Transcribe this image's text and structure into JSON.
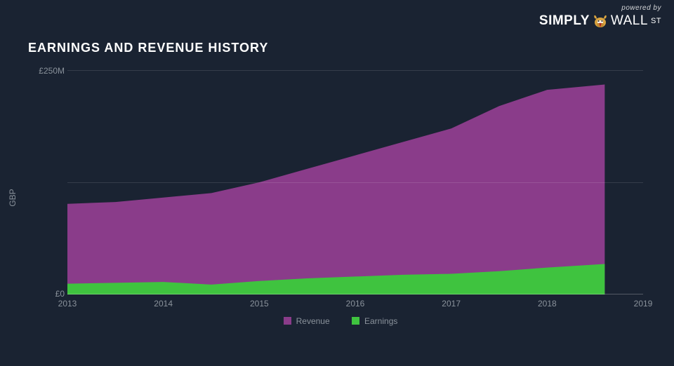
{
  "logo": {
    "powered": "powered by",
    "simply": "SIMPLY",
    "wall": "WALL",
    "st": "ST"
  },
  "chart": {
    "title": "EARNINGS AND REVENUE HISTORY",
    "type": "area",
    "ylabel": "GBP",
    "ylim": [
      0,
      250
    ],
    "ytick_max_label": "£250M",
    "ytick_min_label": "£0",
    "gridlines_y": [
      125,
      250
    ],
    "background_color": "#1a2332",
    "grid_color": "rgba(255,255,255,0.12)",
    "label_fontsize": 12,
    "title_fontsize": 18,
    "x_years": [
      2013,
      2014,
      2015,
      2016,
      2017,
      2018,
      2019
    ],
    "x_data_end": 2018.6,
    "series": {
      "revenue": {
        "label": "Revenue",
        "color": "#8a3c8a",
        "x": [
          2013,
          2013.5,
          2014,
          2014.5,
          2015,
          2015.5,
          2016,
          2016.5,
          2017,
          2017.5,
          2018,
          2018.6
        ],
        "y": [
          101,
          103,
          108,
          113,
          125,
          140,
          155,
          170,
          185,
          210,
          228,
          234
        ]
      },
      "earnings": {
        "label": "Earnings",
        "color": "#3fc33f",
        "x": [
          2013,
          2013.5,
          2014,
          2014.5,
          2015,
          2015.5,
          2016,
          2016.5,
          2017,
          2017.5,
          2018,
          2018.6
        ],
        "y": [
          12,
          13,
          14,
          11,
          15,
          18,
          20,
          22,
          23,
          26,
          30,
          34
        ]
      }
    }
  }
}
